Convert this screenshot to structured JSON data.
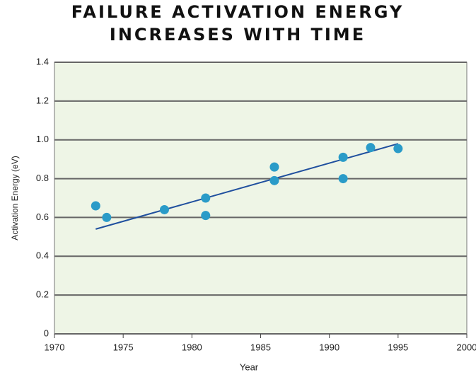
{
  "chart_data": {
    "type": "scatter",
    "title": [
      "FAILURE ACTIVATION ENERGY",
      "INCREASES WITH TIME"
    ],
    "x_label": "Year",
    "y_label": "Activation Energy (eV)",
    "series": [
      {
        "color": "#2a9bc8",
        "x": [
          1973,
          1973.8,
          1978,
          1981,
          1981,
          1986,
          1986,
          1991,
          1991,
          1993,
          1995
        ],
        "values": [
          0.66,
          0.6,
          0.64,
          0.7,
          0.61,
          0.86,
          0.79,
          0.91,
          0.8,
          0.96,
          0.955
        ]
      }
    ],
    "trend": {
      "color": "#1f4f9e",
      "x": [
        1973,
        1995
      ],
      "values": [
        0.54,
        0.98
      ]
    },
    "xlim": [
      1970,
      2000
    ],
    "xticks": [
      1970,
      1975,
      1980,
      1985,
      1990,
      1995,
      2000
    ],
    "ylim": [
      0,
      1.4
    ],
    "yticks": [
      0,
      0.2,
      0.4,
      0.6,
      0.8,
      {
        "value": 1,
        "label": "1.0"
      },
      1.2,
      1.4
    ],
    "grid": true
  }
}
